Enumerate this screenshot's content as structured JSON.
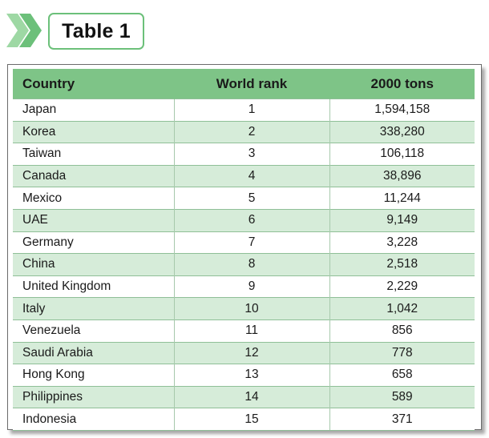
{
  "title": "Table 1",
  "colors": {
    "header_bg": "#7ec487",
    "stripe_bg": "#d6ecd9",
    "accent": "#6cc07a"
  },
  "table": {
    "headers": [
      "Country",
      "World rank",
      "2000 tons"
    ],
    "rows": [
      [
        "Japan",
        "1",
        "1,594,158"
      ],
      [
        "Korea",
        "2",
        "338,280"
      ],
      [
        "Taiwan",
        "3",
        "106,118"
      ],
      [
        "Canada",
        "4",
        "38,896"
      ],
      [
        "Mexico",
        "5",
        "11,244"
      ],
      [
        "UAE",
        "6",
        "9,149"
      ],
      [
        "Germany",
        "7",
        "3,228"
      ],
      [
        "China",
        "8",
        "2,518"
      ],
      [
        "United Kingdom",
        "9",
        "2,229"
      ],
      [
        "Italy",
        "10",
        "1,042"
      ],
      [
        "Venezuela",
        "11",
        "856"
      ],
      [
        "Saudi Arabia",
        "12",
        "778"
      ],
      [
        "Hong Kong",
        "13",
        "658"
      ],
      [
        "Philippines",
        "14",
        "589"
      ],
      [
        "Indonesia",
        "15",
        "371"
      ]
    ]
  }
}
